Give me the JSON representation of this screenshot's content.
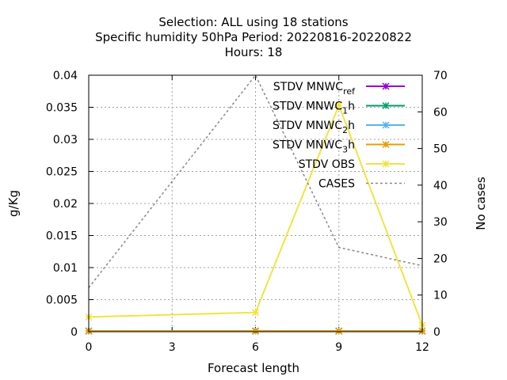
{
  "chart_data": {
    "type": "line",
    "title_lines": [
      "Selection: ALL using    18 stations",
      "Specific humidity 50hPa   Period: 20220816-20220822",
      "Hours:  18"
    ],
    "xlabel": "Forecast length",
    "ylabel": "g/Kg",
    "y2label": "No cases",
    "xlim": [
      0,
      12
    ],
    "ylim": [
      0,
      0.04
    ],
    "y2lim": [
      0,
      70
    ],
    "x_ticks": [
      0,
      3,
      6,
      9,
      12
    ],
    "y_ticks": [
      0,
      0.005,
      0.01,
      0.015,
      0.02,
      0.025,
      0.03,
      0.035,
      0.04
    ],
    "y_tick_labels": [
      "0",
      "0.005",
      "0.01",
      "0.015",
      "0.02",
      "0.025",
      "0.03",
      "0.035",
      "0.04"
    ],
    "y2_ticks": [
      0,
      10,
      20,
      30,
      40,
      50,
      60,
      70
    ],
    "grid": true,
    "legend_position": "top-right",
    "x": [
      0,
      6,
      9,
      12
    ],
    "series": [
      {
        "name": "STDV MNWC_ref",
        "legend_main": "STDV MNWC",
        "legend_sub": "ref",
        "color": "#9400d3",
        "marker": "x",
        "axis": "y",
        "values": [
          0.0001,
          0.0001,
          0.0001,
          0.0001
        ]
      },
      {
        "name": "STDV MNWC_1h",
        "legend_main": "STDV MNWC",
        "legend_sub": "1",
        "legend_suffix": "h",
        "color": "#009e73",
        "marker": "x",
        "axis": "y",
        "values": [
          0.0001,
          0.0001,
          0.0001,
          0.0001
        ]
      },
      {
        "name": "STDV MNWC_2h",
        "legend_main": "STDV MNWC",
        "legend_sub": "2",
        "legend_suffix": "h",
        "color": "#56b4e9",
        "marker": "x",
        "axis": "y",
        "values": [
          0.0001,
          0.0001,
          0.0001,
          0.0001
        ]
      },
      {
        "name": "STDV MNWC_3h",
        "legend_main": "STDV MNWC",
        "legend_sub": "3",
        "legend_suffix": "h",
        "color": "#e69f00",
        "marker": "x",
        "axis": "y",
        "values": [
          0.0001,
          0.0001,
          0.0001,
          0.0001
        ]
      },
      {
        "name": "STDV OBS",
        "legend_main": "STDV OBS",
        "color": "#f0e442",
        "marker": "x",
        "axis": "y",
        "values": [
          0.0023,
          0.003,
          0.0353,
          0.001
        ]
      },
      {
        "name": "CASES",
        "legend_main": "CASES",
        "color": "#888888",
        "marker": "none",
        "dashed": true,
        "axis": "y2",
        "values": [
          12,
          70,
          23,
          18
        ]
      }
    ]
  }
}
